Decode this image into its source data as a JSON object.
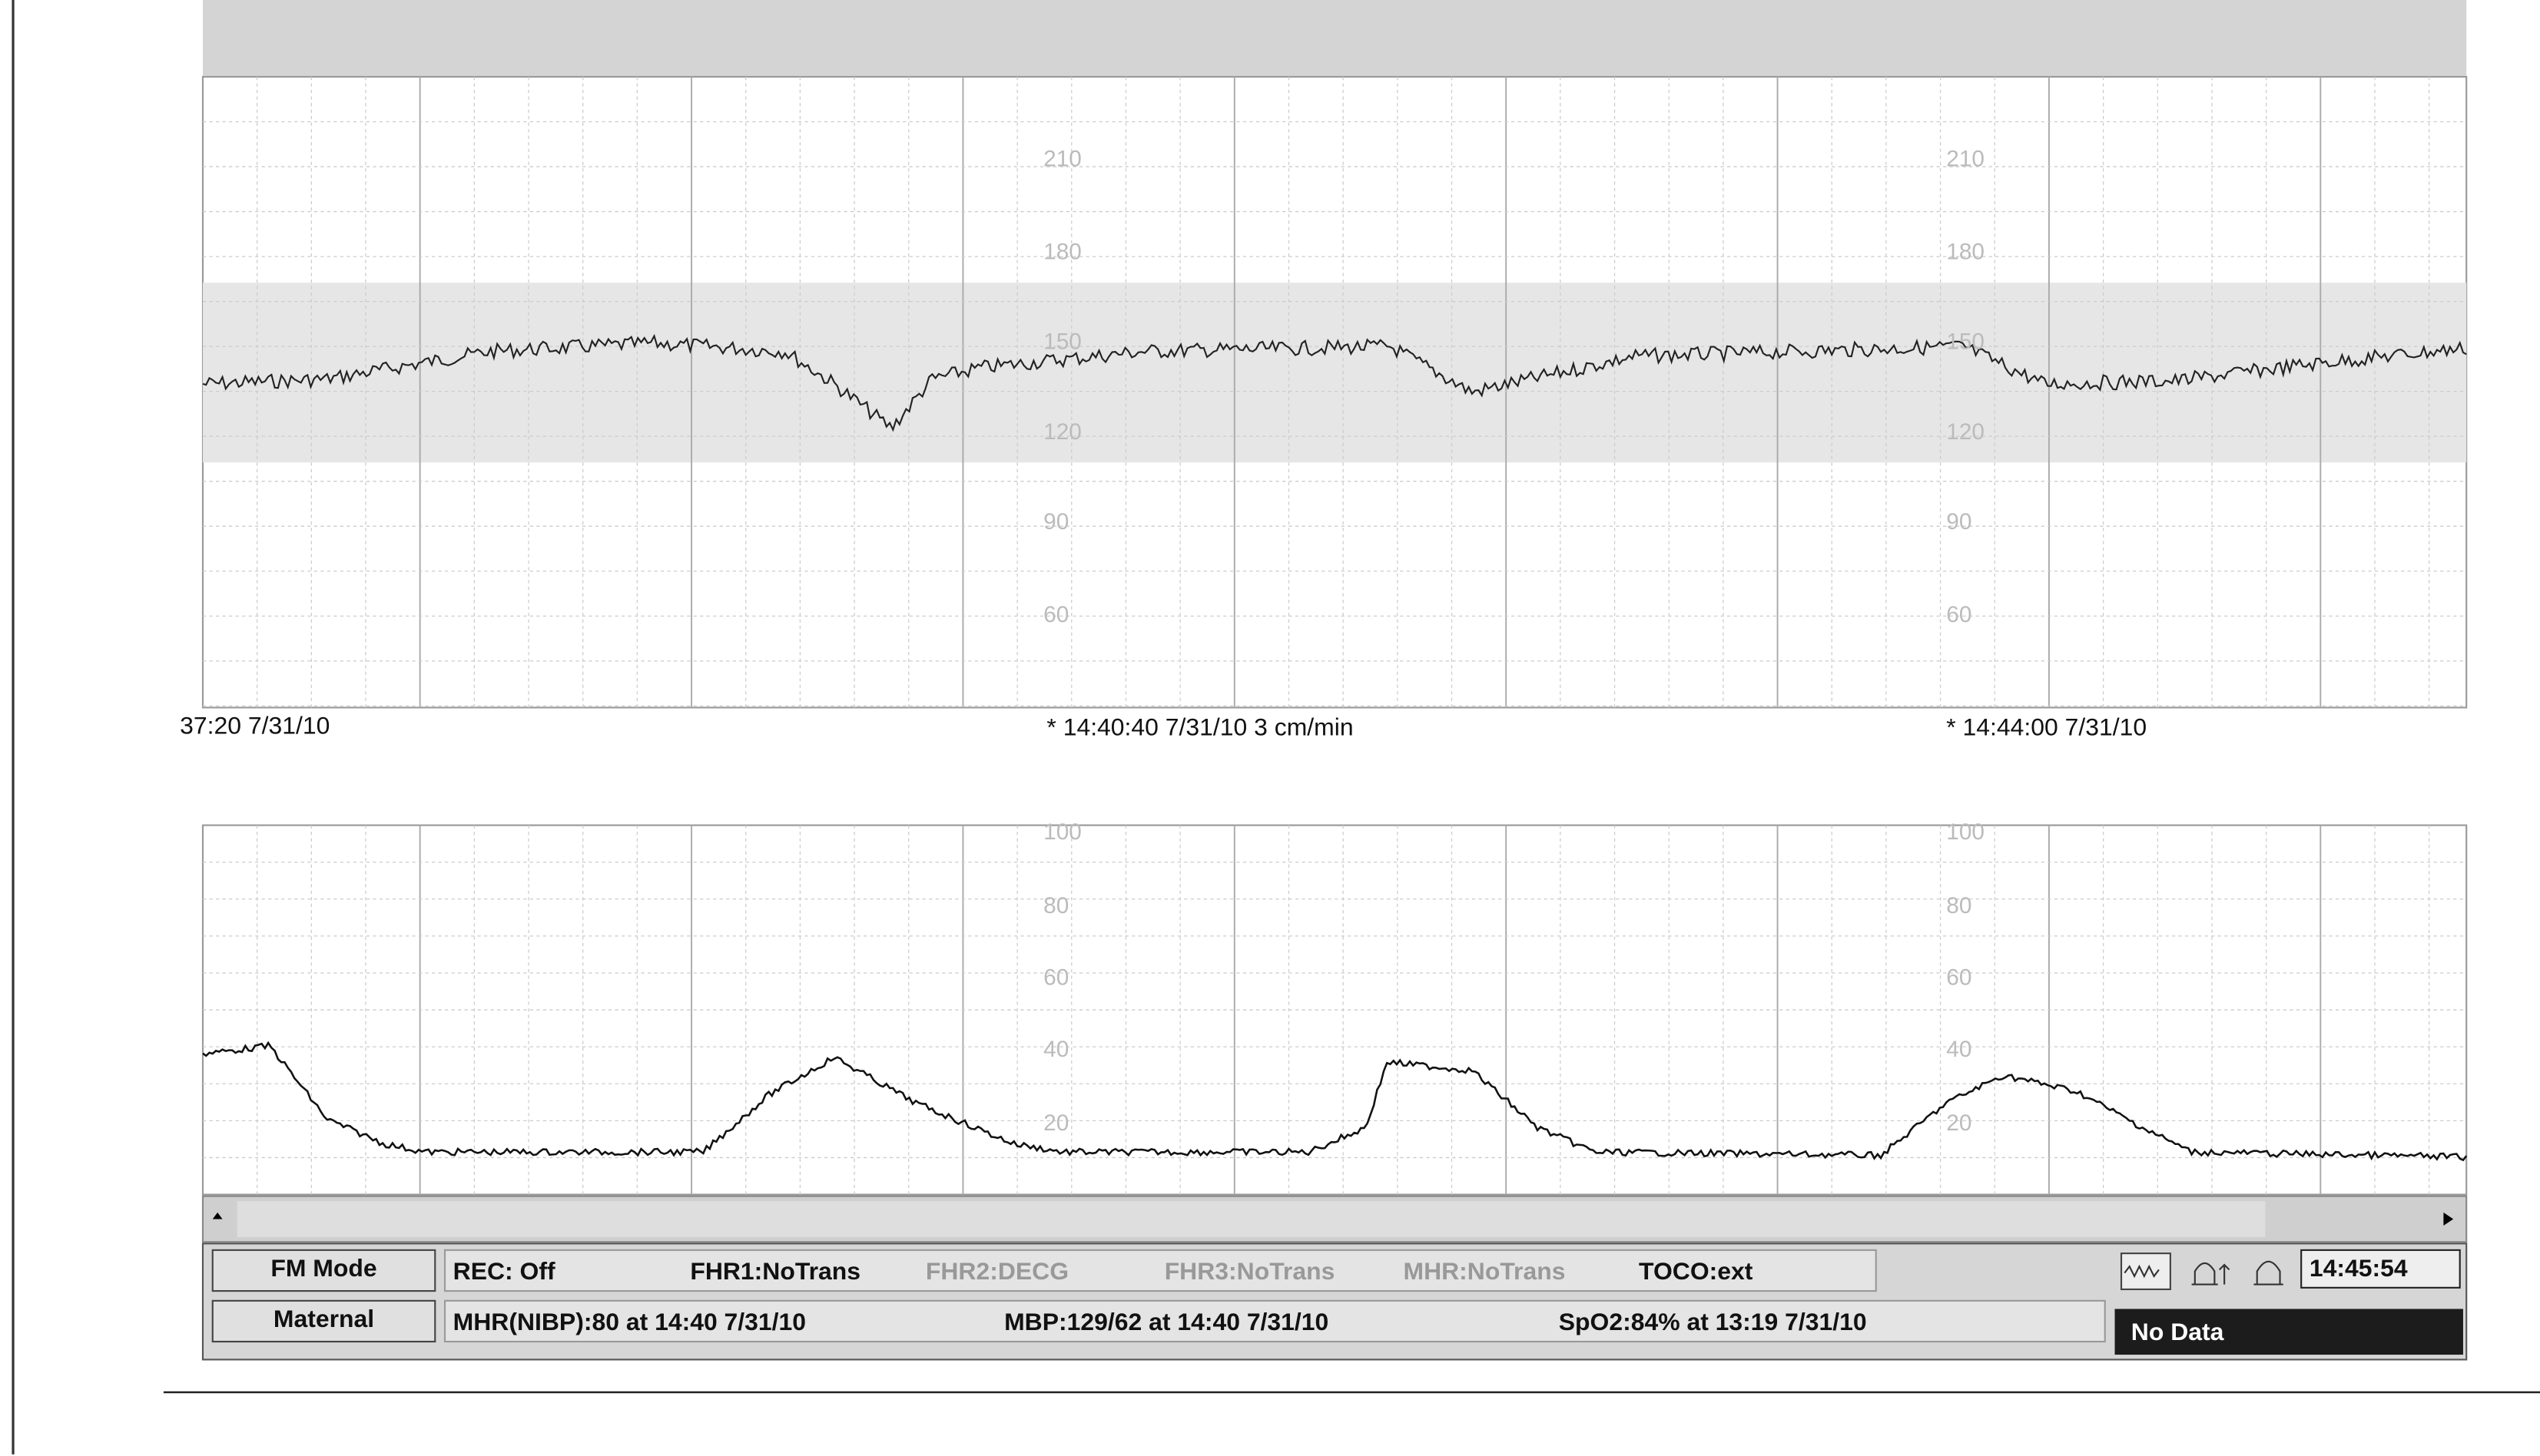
{
  "fhr_scale": {
    "labels": [
      "210",
      "180",
      "150",
      "120",
      "90",
      "60"
    ]
  },
  "toco_scale": {
    "labels": [
      "100",
      "80",
      "60",
      "40",
      "20"
    ]
  },
  "timestamps": [
    "37:20 7/31/10",
    "* 14:40:40 7/31/10  3 cm/min",
    "* 14:44:00 7/31/10"
  ],
  "status": {
    "buttons": [
      "FM Mode",
      "Maternal"
    ],
    "row1": [
      "REC: Off",
      "FHR1:NoTrans",
      "FHR2:DECG",
      "FHR3:NoTrans",
      "MHR:NoTrans",
      "TOCO:ext"
    ],
    "clock": "14:45:54",
    "row2": [
      "MHR(NIBP):80 at 14:40 7/31/10",
      "MBP:129/62 at 14:40 7/31/10",
      "SpO2:84% at 13:19 7/31/10"
    ],
    "no_data": "No Data"
  }
}
